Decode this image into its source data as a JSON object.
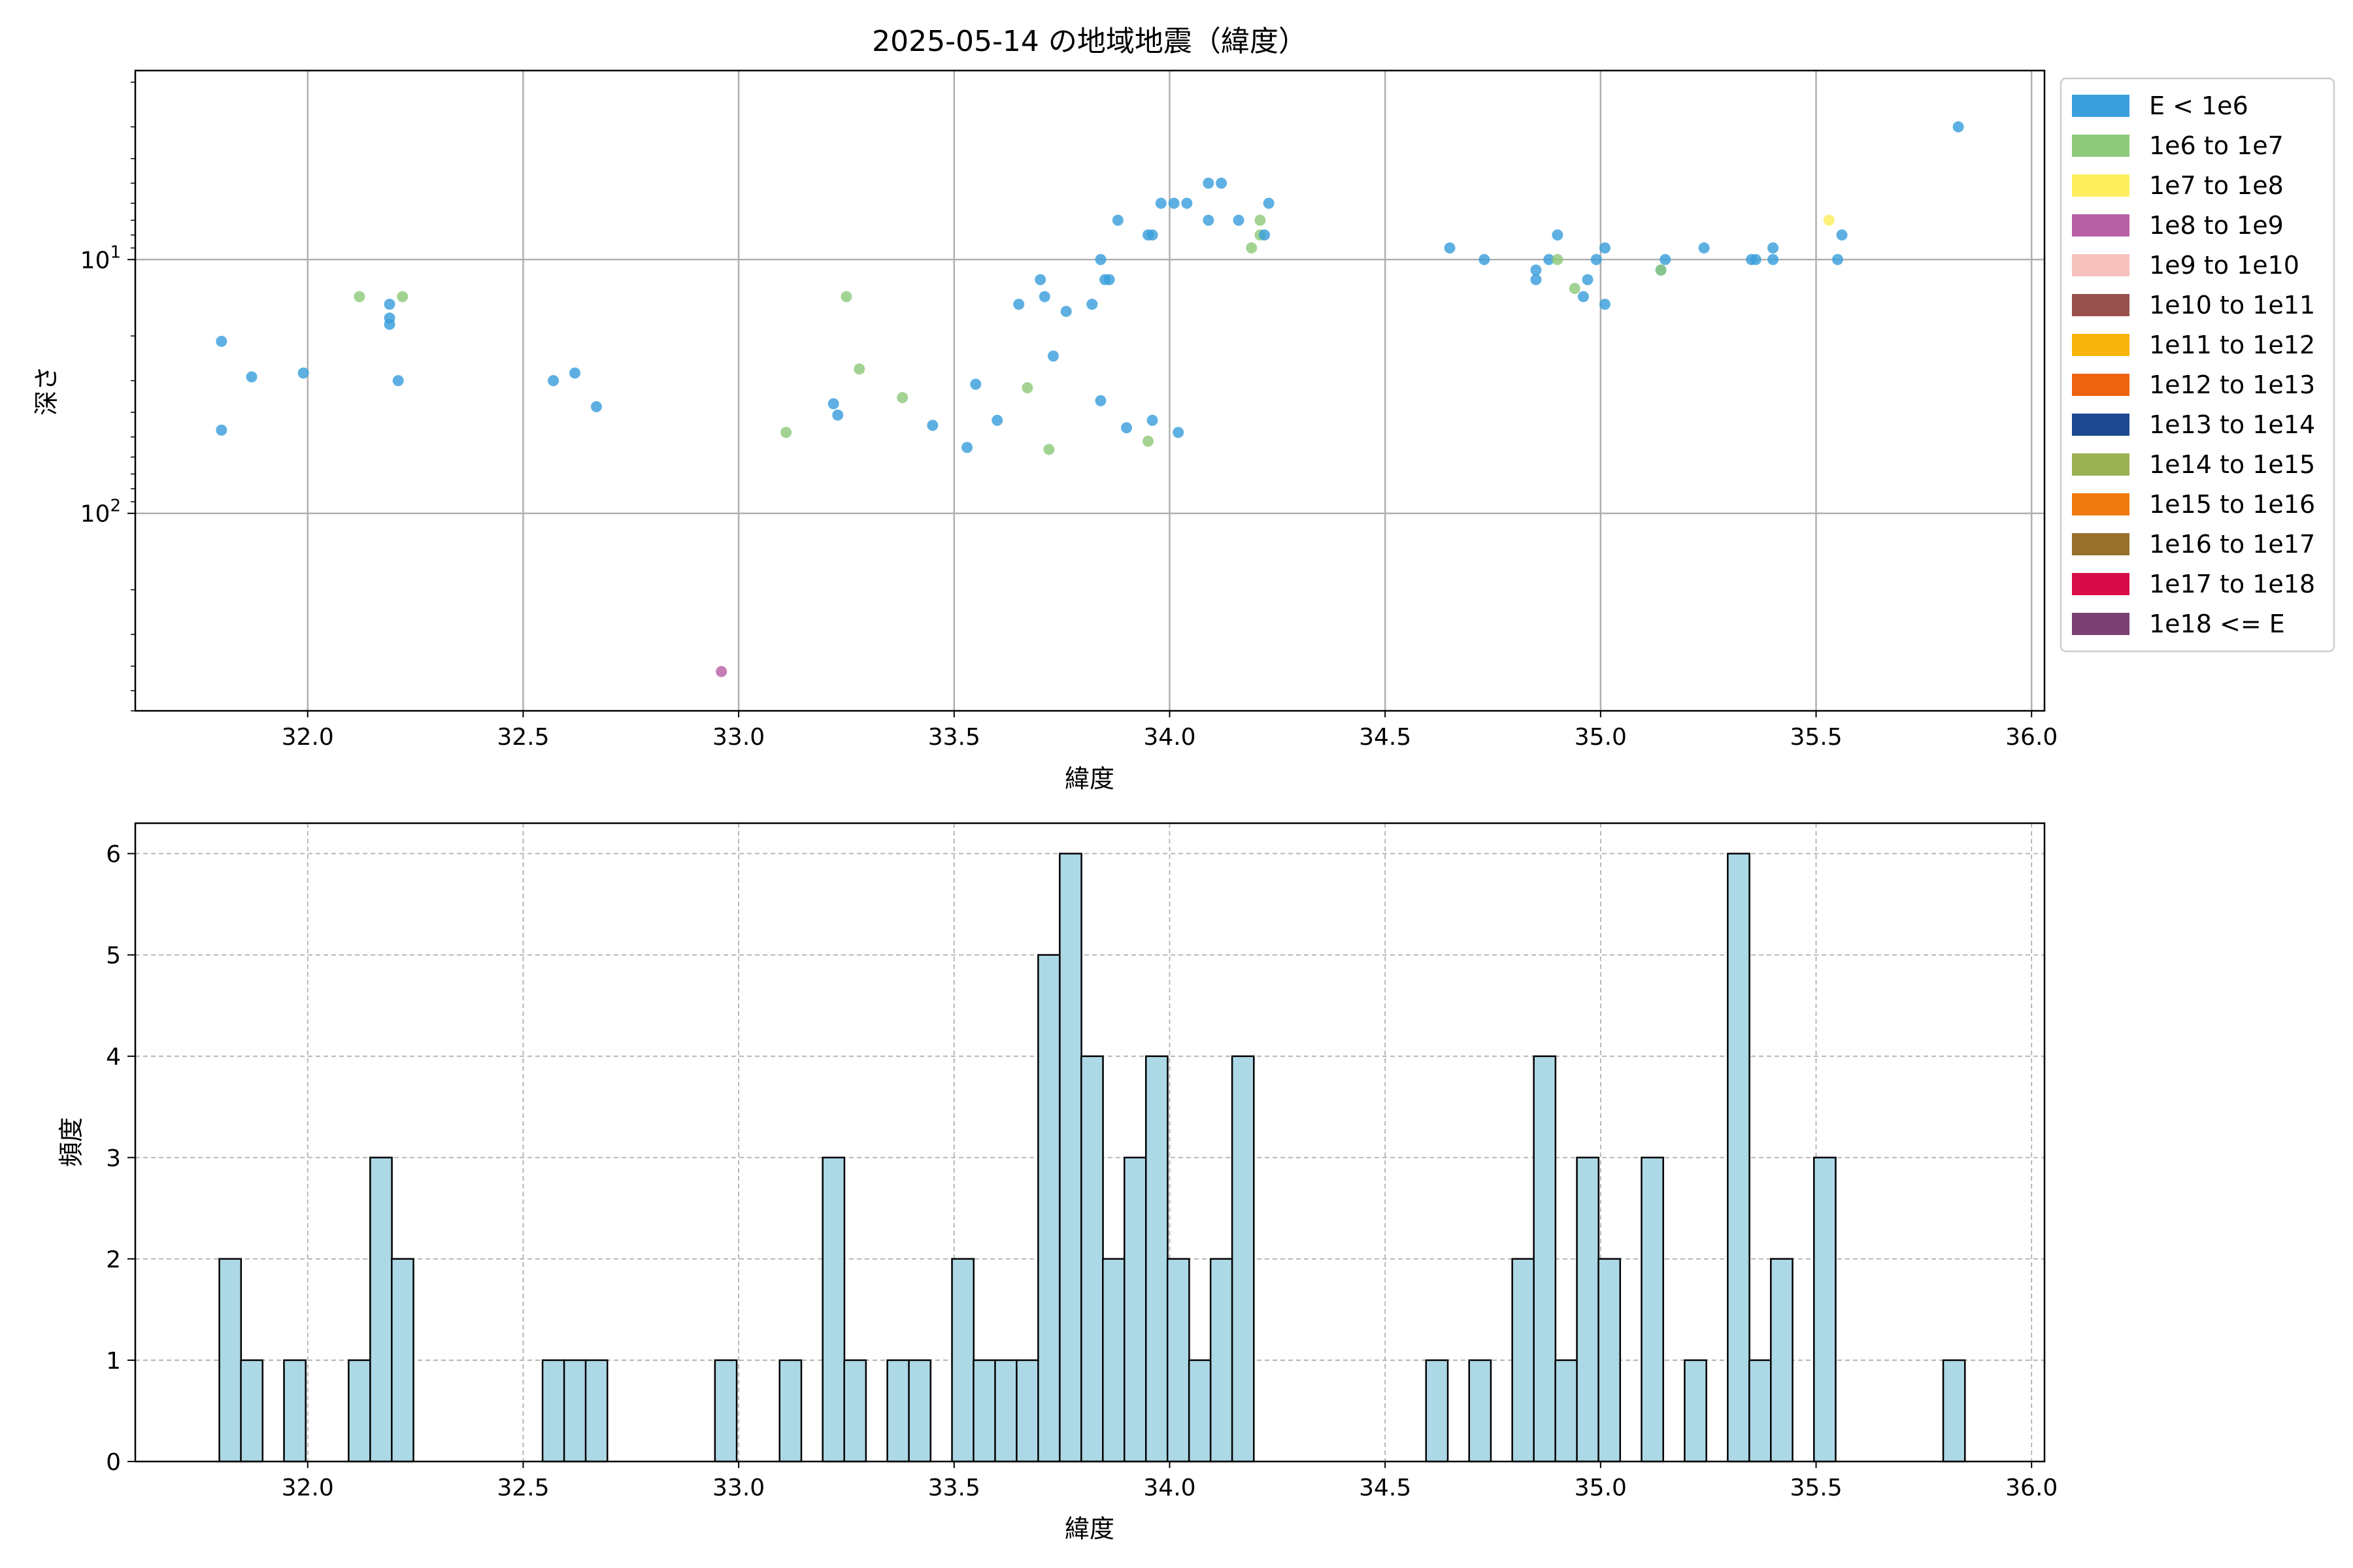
{
  "chart_data": [
    {
      "type": "scatter",
      "title": "2025-05-14 の地域地震（緯度）",
      "xlabel": "緯度",
      "ylabel": "深さ",
      "xlim": [
        31.6,
        36.03
      ],
      "ylim": [
        1.8,
        600
      ],
      "y_scale": "log",
      "y_inverted": true,
      "x_ticks": [
        "32.0",
        "32.5",
        "33.0",
        "33.5",
        "34.0",
        "34.5",
        "35.0",
        "35.5",
        "36.0"
      ],
      "y_ticks": [
        {
          "value": 10,
          "base": "10",
          "exp": "1"
        },
        {
          "value": 100,
          "base": "10",
          "exp": "2"
        }
      ],
      "grid": true,
      "legend_position": "outside-right",
      "legend": [
        {
          "label": "E < 1e6",
          "color": "#3a9fdc"
        },
        {
          "label": "1e6 to 1e7",
          "color": "#8fc97a"
        },
        {
          "label": "1e7 to 1e8",
          "color": "#fdee5c"
        },
        {
          "label": "1e8 to 1e9",
          "color": "#b860a6"
        },
        {
          "label": "1e9 to 1e10",
          "color": "#f6c1bb"
        },
        {
          "label": "1e10 to 1e11",
          "color": "#98504c"
        },
        {
          "label": "1e11 to 1e12",
          "color": "#f8b40a"
        },
        {
          "label": "1e12 to 1e13",
          "color": "#ee6310"
        },
        {
          "label": "1e13 to 1e14",
          "color": "#1c4991"
        },
        {
          "label": "1e14 to 1e15",
          "color": "#9bb050"
        },
        {
          "label": "1e15 to 1e16",
          "color": "#f07a0e"
        },
        {
          "label": "1e16 to 1e17",
          "color": "#98702c"
        },
        {
          "label": "1e17 to 1e18",
          "color": "#d80c48"
        },
        {
          "label": "1e18 <= E",
          "color": "#7b3f74"
        }
      ],
      "points": [
        {
          "x": 31.8,
          "y": 21,
          "c": 0
        },
        {
          "x": 31.8,
          "y": 47,
          "c": 0
        },
        {
          "x": 31.87,
          "y": 29,
          "c": 0
        },
        {
          "x": 31.99,
          "y": 28,
          "c": 0
        },
        {
          "x": 32.12,
          "y": 14,
          "c": 1
        },
        {
          "x": 32.19,
          "y": 15,
          "c": 0
        },
        {
          "x": 32.19,
          "y": 17,
          "c": 0
        },
        {
          "x": 32.19,
          "y": 18,
          "c": 0
        },
        {
          "x": 32.21,
          "y": 30,
          "c": 0
        },
        {
          "x": 32.22,
          "y": 14,
          "c": 1
        },
        {
          "x": 32.57,
          "y": 30,
          "c": 0
        },
        {
          "x": 32.62,
          "y": 28,
          "c": 0
        },
        {
          "x": 32.67,
          "y": 38,
          "c": 0
        },
        {
          "x": 32.96,
          "y": 420,
          "c": 3
        },
        {
          "x": 33.11,
          "y": 48,
          "c": 1
        },
        {
          "x": 33.22,
          "y": 37,
          "c": 0
        },
        {
          "x": 33.23,
          "y": 41,
          "c": 0
        },
        {
          "x": 33.25,
          "y": 14,
          "c": 1
        },
        {
          "x": 33.28,
          "y": 27,
          "c": 1
        },
        {
          "x": 33.38,
          "y": 35,
          "c": 1
        },
        {
          "x": 33.45,
          "y": 45,
          "c": 0
        },
        {
          "x": 33.53,
          "y": 55,
          "c": 0
        },
        {
          "x": 33.55,
          "y": 31,
          "c": 0
        },
        {
          "x": 33.6,
          "y": 43,
          "c": 0
        },
        {
          "x": 33.65,
          "y": 15,
          "c": 0
        },
        {
          "x": 33.67,
          "y": 32,
          "c": 1
        },
        {
          "x": 33.7,
          "y": 12,
          "c": 0
        },
        {
          "x": 33.71,
          "y": 14,
          "c": 0
        },
        {
          "x": 33.72,
          "y": 56,
          "c": 1
        },
        {
          "x": 33.73,
          "y": 24,
          "c": 0
        },
        {
          "x": 33.76,
          "y": 16,
          "c": 0
        },
        {
          "x": 33.82,
          "y": 15,
          "c": 0
        },
        {
          "x": 33.84,
          "y": 10,
          "c": 0
        },
        {
          "x": 33.84,
          "y": 36,
          "c": 0
        },
        {
          "x": 33.85,
          "y": 12,
          "c": 0
        },
        {
          "x": 33.86,
          "y": 12,
          "c": 0
        },
        {
          "x": 33.88,
          "y": 7,
          "c": 0
        },
        {
          "x": 33.9,
          "y": 46,
          "c": 0
        },
        {
          "x": 33.95,
          "y": 8,
          "c": 0
        },
        {
          "x": 33.96,
          "y": 8,
          "c": 0
        },
        {
          "x": 33.96,
          "y": 43,
          "c": 0
        },
        {
          "x": 33.95,
          "y": 52,
          "c": 1
        },
        {
          "x": 33.98,
          "y": 6,
          "c": 0
        },
        {
          "x": 34.01,
          "y": 6,
          "c": 0
        },
        {
          "x": 34.02,
          "y": 48,
          "c": 0
        },
        {
          "x": 34.04,
          "y": 6,
          "c": 0
        },
        {
          "x": 34.09,
          "y": 5,
          "c": 0
        },
        {
          "x": 34.09,
          "y": 7,
          "c": 0
        },
        {
          "x": 34.12,
          "y": 5,
          "c": 0
        },
        {
          "x": 34.16,
          "y": 7,
          "c": 0
        },
        {
          "x": 34.19,
          "y": 9,
          "c": 1
        },
        {
          "x": 34.21,
          "y": 7,
          "c": 1
        },
        {
          "x": 34.21,
          "y": 8,
          "c": 1
        },
        {
          "x": 34.22,
          "y": 8,
          "c": 0
        },
        {
          "x": 34.23,
          "y": 6,
          "c": 0
        },
        {
          "x": 34.65,
          "y": 9,
          "c": 0
        },
        {
          "x": 34.73,
          "y": 10,
          "c": 0
        },
        {
          "x": 34.85,
          "y": 11,
          "c": 0
        },
        {
          "x": 34.85,
          "y": 12,
          "c": 0
        },
        {
          "x": 34.88,
          "y": 10,
          "c": 0
        },
        {
          "x": 34.9,
          "y": 8,
          "c": 0
        },
        {
          "x": 34.9,
          "y": 10,
          "c": 1
        },
        {
          "x": 34.94,
          "y": 13,
          "c": 1
        },
        {
          "x": 34.96,
          "y": 14,
          "c": 0
        },
        {
          "x": 34.97,
          "y": 12,
          "c": 0
        },
        {
          "x": 34.99,
          "y": 10,
          "c": 0
        },
        {
          "x": 35.01,
          "y": 9,
          "c": 0
        },
        {
          "x": 35.01,
          "y": 15,
          "c": 0
        },
        {
          "x": 35.14,
          "y": 11,
          "c": 0
        },
        {
          "x": 35.14,
          "y": 11,
          "c": 1
        },
        {
          "x": 35.15,
          "y": 10,
          "c": 0
        },
        {
          "x": 35.24,
          "y": 9,
          "c": 0
        },
        {
          "x": 35.35,
          "y": 10,
          "c": 0
        },
        {
          "x": 35.36,
          "y": 10,
          "c": 0
        },
        {
          "x": 35.4,
          "y": 9,
          "c": 0
        },
        {
          "x": 35.4,
          "y": 10,
          "c": 0
        },
        {
          "x": 35.53,
          "y": 7,
          "c": 2
        },
        {
          "x": 35.55,
          "y": 10,
          "c": 0
        },
        {
          "x": 35.56,
          "y": 8,
          "c": 0
        },
        {
          "x": 35.83,
          "y": 3,
          "c": 0
        }
      ]
    },
    {
      "type": "bar",
      "xlabel": "緯度",
      "ylabel": "頻度",
      "xlim": [
        31.6,
        36.03
      ],
      "ylim": [
        0,
        6.3
      ],
      "x_ticks": [
        "32.0",
        "32.5",
        "33.0",
        "33.5",
        "34.0",
        "34.5",
        "35.0",
        "35.5",
        "36.0"
      ],
      "y_ticks": [
        "0",
        "1",
        "2",
        "3",
        "4",
        "5",
        "6"
      ],
      "grid": true,
      "bar_color": "#add8e6",
      "bin_width": 0.0504,
      "bins": [
        {
          "x": 31.795,
          "value": 2
        },
        {
          "x": 31.845,
          "value": 1
        },
        {
          "x": 31.945,
          "value": 1
        },
        {
          "x": 32.095,
          "value": 1
        },
        {
          "x": 32.145,
          "value": 3
        },
        {
          "x": 32.195,
          "value": 2
        },
        {
          "x": 32.545,
          "value": 1
        },
        {
          "x": 32.595,
          "value": 1
        },
        {
          "x": 32.645,
          "value": 1
        },
        {
          "x": 32.945,
          "value": 1
        },
        {
          "x": 33.095,
          "value": 1
        },
        {
          "x": 33.195,
          "value": 3
        },
        {
          "x": 33.245,
          "value": 1
        },
        {
          "x": 33.345,
          "value": 1
        },
        {
          "x": 33.395,
          "value": 1
        },
        {
          "x": 33.495,
          "value": 2
        },
        {
          "x": 33.545,
          "value": 1
        },
        {
          "x": 33.595,
          "value": 1
        },
        {
          "x": 33.645,
          "value": 1
        },
        {
          "x": 33.695,
          "value": 5
        },
        {
          "x": 33.745,
          "value": 6
        },
        {
          "x": 33.795,
          "value": 4
        },
        {
          "x": 33.845,
          "value": 2
        },
        {
          "x": 33.895,
          "value": 3
        },
        {
          "x": 33.945,
          "value": 4
        },
        {
          "x": 33.995,
          "value": 2
        },
        {
          "x": 34.045,
          "value": 1
        },
        {
          "x": 34.095,
          "value": 2
        },
        {
          "x": 34.145,
          "value": 4
        },
        {
          "x": 34.595,
          "value": 1
        },
        {
          "x": 34.695,
          "value": 1
        },
        {
          "x": 34.795,
          "value": 2
        },
        {
          "x": 34.845,
          "value": 4
        },
        {
          "x": 34.895,
          "value": 1
        },
        {
          "x": 34.945,
          "value": 3
        },
        {
          "x": 34.995,
          "value": 2
        },
        {
          "x": 35.095,
          "value": 3
        },
        {
          "x": 35.195,
          "value": 1
        },
        {
          "x": 35.295,
          "value": 6
        },
        {
          "x": 35.345,
          "value": 1
        },
        {
          "x": 35.395,
          "value": 2
        },
        {
          "x": 35.495,
          "value": 3
        },
        {
          "x": 35.795,
          "value": 1
        }
      ]
    }
  ]
}
